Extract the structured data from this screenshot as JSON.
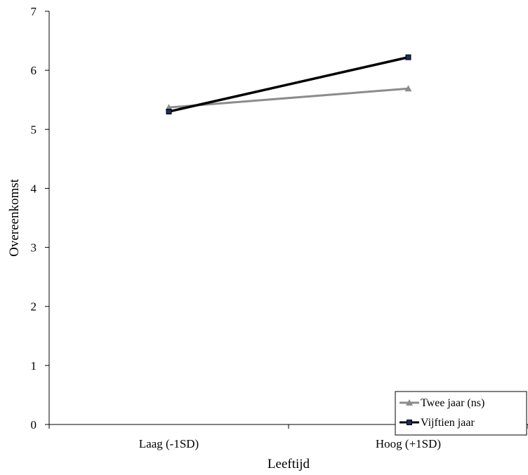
{
  "chart_data": {
    "type": "line",
    "categories": [
      "Laag (-1SD)",
      "Hoog (+1SD)"
    ],
    "series": [
      {
        "name": "Twee jaar (ns)",
        "values": [
          5.37,
          5.69
        ],
        "color": "#8c8c8c",
        "marker": "triangle"
      },
      {
        "name": "Vijftien jaar",
        "values": [
          5.3,
          6.22
        ],
        "color": "#000000",
        "marker": "square"
      }
    ],
    "xlabel": "Leeftijd",
    "ylabel": "Overeenkomst",
    "ylim": [
      0,
      7
    ],
    "yticks": [
      0,
      1,
      2,
      3,
      4,
      5,
      6,
      7
    ],
    "grid": false,
    "legend_position": "bottom-right"
  }
}
